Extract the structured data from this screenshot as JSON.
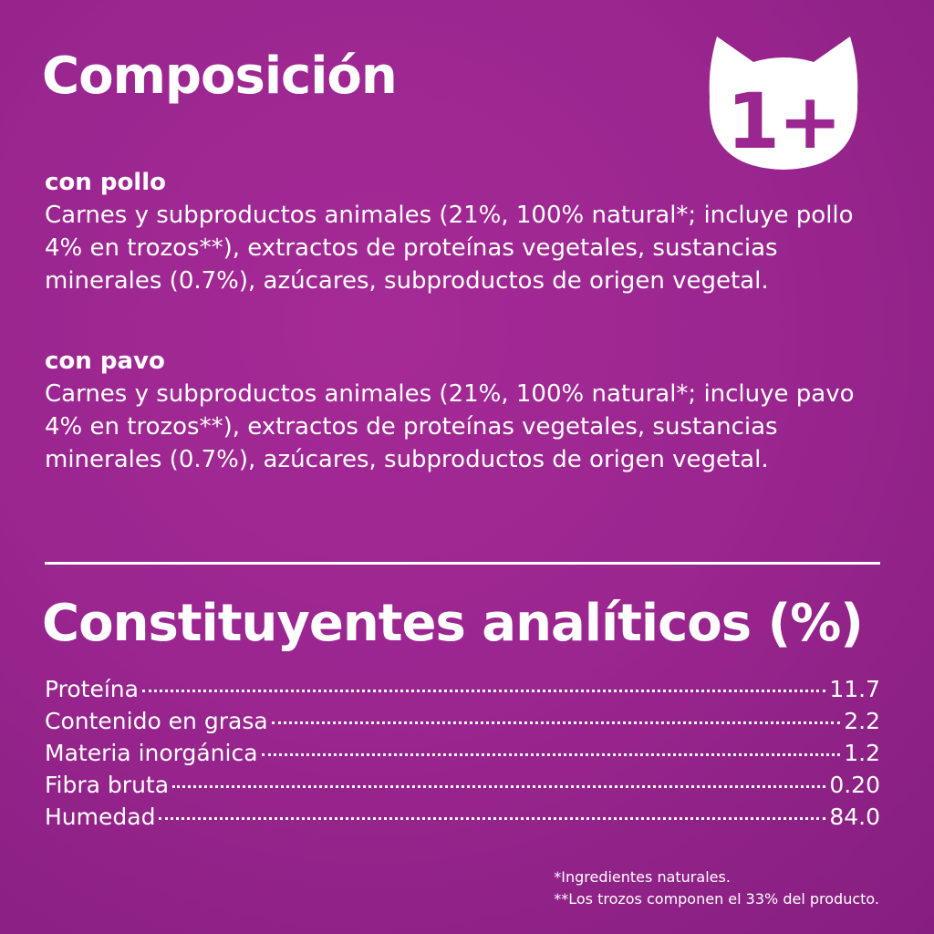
{
  "composition": {
    "title": "Composición",
    "sections": [
      {
        "heading": "con pollo",
        "text": "Carnes y subproductos animales (21%, 100% natural*; incluye pollo 4% en trozos**), extractos de proteínas vegetales, sustancias minerales (0.7%), azúcares, subproductos  de origen vegetal."
      },
      {
        "heading": "con pavo",
        "text": "Carnes y subproductos animales (21%, 100% natural*; incluye pavo 4% en trozos**), extractos de proteínas vegetales, sustancias minerales (0.7%), azúcares, subproductos de origen vegetal."
      }
    ]
  },
  "badge": {
    "label": "1+",
    "icon": "cat-head-icon",
    "colors": {
      "fill": "#ffffff",
      "text": "#9b2690"
    }
  },
  "analytics": {
    "title": "Constituyentes analíticos (%)",
    "rows": [
      {
        "label": "Proteína",
        "value": "11.7"
      },
      {
        "label": "Contenido en grasa",
        "value": "2.2"
      },
      {
        "label": "Materia inorgánica",
        "value": "1.2"
      },
      {
        "label": "Fibra bruta",
        "value": "0.20"
      },
      {
        "label": "Humedad",
        "value": "84.0"
      }
    ]
  },
  "footnotes": [
    "*Ingredientes naturales.",
    "**Los trozos componen el 33% del producto."
  ],
  "colors": {
    "background": "#9b2690",
    "text": "#ffffff"
  }
}
